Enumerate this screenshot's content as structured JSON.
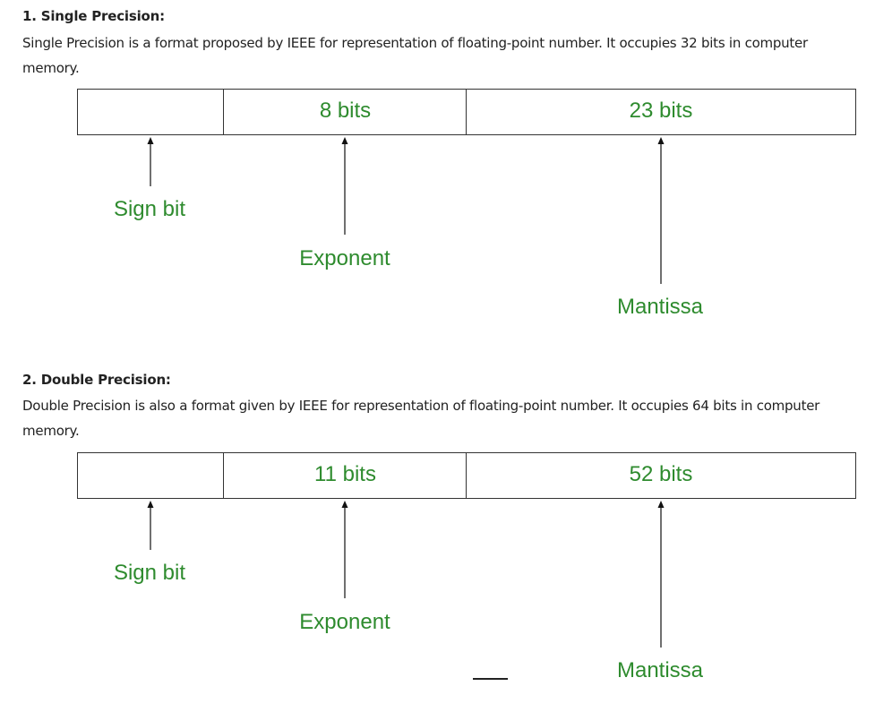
{
  "sections": [
    {
      "heading": "1. Single Precision:",
      "description": "Single Precision is a format proposed by IEEE for representation of floating-point number. It occupies 32 bits in computer memory.",
      "diagram": {
        "sign_field": "",
        "exponent_field": "8 bits",
        "mantissa_field": "23 bits",
        "sign_label": "Sign bit",
        "exponent_label": "Exponent",
        "mantissa_label": "Mantissa"
      }
    },
    {
      "heading": "2. Double Precision:",
      "description": "Double Precision is also a format given by IEEE for representation of floating-point number. It occupies 64 bits in computer memory.",
      "diagram": {
        "sign_field": "",
        "exponent_field": "11 bits",
        "mantissa_field": "52 bits",
        "sign_label": "Sign bit",
        "exponent_label": "Exponent",
        "mantissa_label": "Mantissa"
      }
    }
  ],
  "colors": {
    "label_green": "#2e8b2e",
    "text": "#222222",
    "border": "#333333"
  }
}
